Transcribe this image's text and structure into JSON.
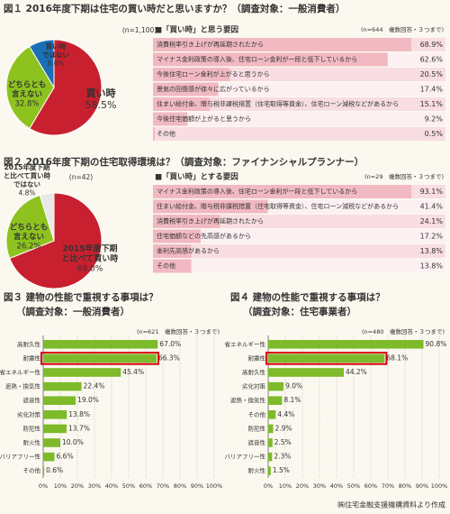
{
  "chart_data": [
    {
      "type": "pie",
      "title": "図１ 2016年度下期は住宅の買い時だと思いますか？（調査対象：一般消費者）",
      "note": "(n=1,100)",
      "categories": [
        [
          "買い時"
        ],
        [
          "どちらとも",
          "言えない"
        ],
        [
          "買い時",
          "ではない"
        ]
      ],
      "values": [
        58.5,
        32.8,
        8.6
      ],
      "value_labels": [
        "58.5%",
        "32.8%",
        "8.6%"
      ],
      "colors": [
        "#c8202e",
        "#8dc21f",
        "#1a6fb5"
      ]
    },
    {
      "type": "rows",
      "subtitle": "■「買い時」と思う要因",
      "note": "(n=644　複数回答・３つまで)",
      "categories": [
        "消費税率引き上げが再延期されたから",
        "マイナス金利政策の導入後、住宅ローン金利が一段と低下しているから",
        "今後住宅ローン金利が上がると思うから",
        "景気の回復感が徐々に広がっているから",
        "住まい給付金、贈与税非課税措置（住宅取得等資金）、住宅ローン減税などがあるから",
        "今後住宅価額が上がると思うから",
        "その他"
      ],
      "values": [
        68.9,
        62.6,
        20.5,
        17.4,
        15.1,
        9.2,
        0.5
      ],
      "value_labels": [
        "68.9%",
        "62.6%",
        "20.5%",
        "17.4%",
        "15.1%",
        "9.2%",
        "0.5%"
      ],
      "color": "#f1b9c2"
    },
    {
      "type": "pie",
      "title": "図２ 2016年度下期の住宅取得環境は？（調査対象：ファイナンシャルプランナー）",
      "note": "(n=42)",
      "categories": [
        [
          "2015年度下期",
          "と比べて買い時"
        ],
        [
          "どちらとも",
          "言えない"
        ],
        [
          "2015年度下期",
          "と比べて買い時",
          "ではない"
        ]
      ],
      "values": [
        69.0,
        26.2,
        4.8
      ],
      "value_labels": [
        "69.0%",
        "26.2%",
        "4.8%"
      ],
      "colors": [
        "#c8202e",
        "#8dc21f",
        "#e8e8e8"
      ]
    },
    {
      "type": "rows",
      "subtitle": "■「買い時」とする要因",
      "note": "(n=29　複数回答・３つまで)",
      "categories": [
        "マイナス金利政策の導入後、住宅ローン金利が一段と低下しているから",
        "住まい給付金、贈与税非課税措置（住宅取得等資金）、住宅ローン減税などがあるから",
        "消費税率引き上げが再延期されたから",
        "住宅価額などの先高感があるから",
        "金利先高感があるから",
        "その他"
      ],
      "values": [
        93.1,
        41.4,
        24.1,
        17.2,
        13.8,
        13.8
      ],
      "value_labels": [
        "93.1%",
        "41.4%",
        "24.1%",
        "17.2%",
        "13.8%",
        "13.8%"
      ],
      "color": "#f1b9c2"
    },
    {
      "type": "bar",
      "title": "図３ 建物の性能で重視する事項は？",
      "subtitle": "（調査対象：一般消費者）",
      "note": "(n=621　複数回答・３つまで)",
      "categories": [
        "高耐久性",
        "耐震性",
        "省エネルギー性",
        "遮熱・換気性",
        "遮音性",
        "劣化対策",
        "防犯性",
        "耐火性",
        "バリアフリー性",
        "その他"
      ],
      "values": [
        67.0,
        66.3,
        45.4,
        22.4,
        19.0,
        13.8,
        13.7,
        10.0,
        6.6,
        0.6
      ],
      "value_labels": [
        "67.0%",
        "66.3%",
        "45.4%",
        "22.4%",
        "19.0%",
        "13.8%",
        "13.7%",
        "10.0%",
        "6.6%",
        "0.6%"
      ],
      "color": "#7dbb2a",
      "highlight": [
        1
      ],
      "highlight_color": "#d7000f",
      "xlim": [
        0,
        100
      ],
      "xticks": [
        {
          "value": 0,
          "label": "0%"
        },
        {
          "value": 10,
          "label": "10%"
        },
        {
          "value": 20,
          "label": "20%"
        },
        {
          "value": 30,
          "label": "30%"
        },
        {
          "value": 40,
          "label": "40%"
        },
        {
          "value": 50,
          "label": "50%"
        },
        {
          "value": 60,
          "label": "60%"
        },
        {
          "value": 70,
          "label": "70%"
        },
        {
          "value": 80,
          "label": "80%"
        },
        {
          "value": 90,
          "label": "90%"
        },
        {
          "value": 100,
          "label": "100%"
        }
      ],
      "grid": true
    },
    {
      "type": "bar",
      "title": "図４ 建物の性能で重視する事項は？",
      "subtitle": "（調査対象：住宅事業者）",
      "note": "(n=480　複数回答・３つまで)",
      "categories": [
        "省エネルギー性",
        "耐震性",
        "高耐久性",
        "劣化対策",
        "遮熱・換気性",
        "その他",
        "防犯性",
        "遮音性",
        "バリアフリー性",
        "耐火性"
      ],
      "values": [
        90.8,
        68.1,
        44.2,
        9.0,
        8.1,
        4.4,
        2.9,
        2.5,
        2.3,
        1.5
      ],
      "value_labels": [
        "90.8%",
        "68.1%",
        "44.2%",
        "9.0%",
        "8.1%",
        "4.4%",
        "2.9%",
        "2.5%",
        "2.3%",
        "1.5%"
      ],
      "color": "#7dbb2a",
      "highlight": [
        1
      ],
      "highlight_color": "#d7000f",
      "xlim": [
        0,
        100
      ],
      "xticks": [
        {
          "value": 0,
          "label": "0%"
        },
        {
          "value": 10,
          "label": "10%"
        },
        {
          "value": 20,
          "label": "20%"
        },
        {
          "value": 30,
          "label": "30%"
        },
        {
          "value": 40,
          "label": "40%"
        },
        {
          "value": 50,
          "label": "50%"
        },
        {
          "value": 60,
          "label": "60%"
        },
        {
          "value": 70,
          "label": "70%"
        },
        {
          "value": 80,
          "label": "80%"
        },
        {
          "value": 90,
          "label": "90%"
        },
        {
          "value": 100,
          "label": "100%"
        }
      ],
      "grid": true
    }
  ],
  "source": "㈱住宅金融支援機構資料より作成"
}
